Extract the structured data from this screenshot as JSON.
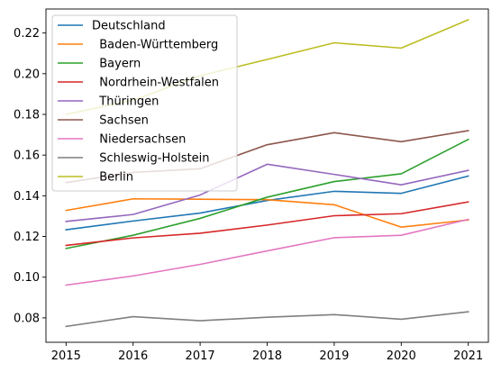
{
  "chart_data": {
    "type": "line",
    "title": "",
    "xlabel": "",
    "ylabel": "",
    "x": [
      2015,
      2016,
      2017,
      2018,
      2019,
      2020,
      2021
    ],
    "xlim": [
      2014.7,
      2021.3
    ],
    "ylim": [
      0.068,
      0.2318
    ],
    "yticks": [
      0.08,
      0.1,
      0.12,
      0.14,
      0.16,
      0.18,
      0.2,
      0.22
    ],
    "ytick_labels": [
      "0.08",
      "0.10",
      "0.12",
      "0.14",
      "0.16",
      "0.18",
      "0.20",
      "0.22"
    ],
    "xtick_labels": [
      "2015",
      "2016",
      "2017",
      "2018",
      "2019",
      "2020",
      "2021"
    ],
    "grid": false,
    "legend_position": "top-left",
    "series": [
      {
        "name": "Deutschland",
        "color": "#1f77b4",
        "values": [
          0.1233,
          0.1276,
          0.1315,
          0.1377,
          0.1422,
          0.1412,
          0.1497
        ]
      },
      {
        "name": "  Baden-Württemberg",
        "color": "#ff7f0e",
        "values": [
          0.1328,
          0.1385,
          0.1383,
          0.1381,
          0.1356,
          0.1246,
          0.1281
        ]
      },
      {
        "name": "  Bayern",
        "color": "#2ca02c",
        "values": [
          0.1141,
          0.1206,
          0.1289,
          0.1393,
          0.147,
          0.1508,
          0.1677
        ]
      },
      {
        "name": "  Nordrhein-Westfalen",
        "color": "#d62728",
        "values": [
          0.1156,
          0.1193,
          0.1216,
          0.1256,
          0.1302,
          0.1312,
          0.137
        ]
      },
      {
        "name": "  Thüringen",
        "color": "#9467bd",
        "values": [
          0.1274,
          0.1308,
          0.1404,
          0.1555,
          0.1505,
          0.1454,
          0.1525
        ]
      },
      {
        "name": "  Sachsen",
        "color": "#8c564b",
        "values": [
          0.1465,
          0.1515,
          0.1533,
          0.1651,
          0.171,
          0.1666,
          0.172
        ]
      },
      {
        "name": "  Niedersachsen",
        "color": "#e377c2",
        "values": [
          0.0961,
          0.1006,
          0.1063,
          0.1129,
          0.1194,
          0.1206,
          0.1284
        ]
      },
      {
        "name": "  Schleswig-Holstein",
        "color": "#7f7f7f",
        "values": [
          0.0758,
          0.0806,
          0.0786,
          0.0803,
          0.0816,
          0.0793,
          0.083
        ]
      },
      {
        "name": "  Berlin",
        "color": "#bcbd22",
        "values": [
          0.18,
          0.187,
          0.199,
          0.207,
          0.2152,
          0.2126,
          0.2265
        ]
      }
    ]
  }
}
